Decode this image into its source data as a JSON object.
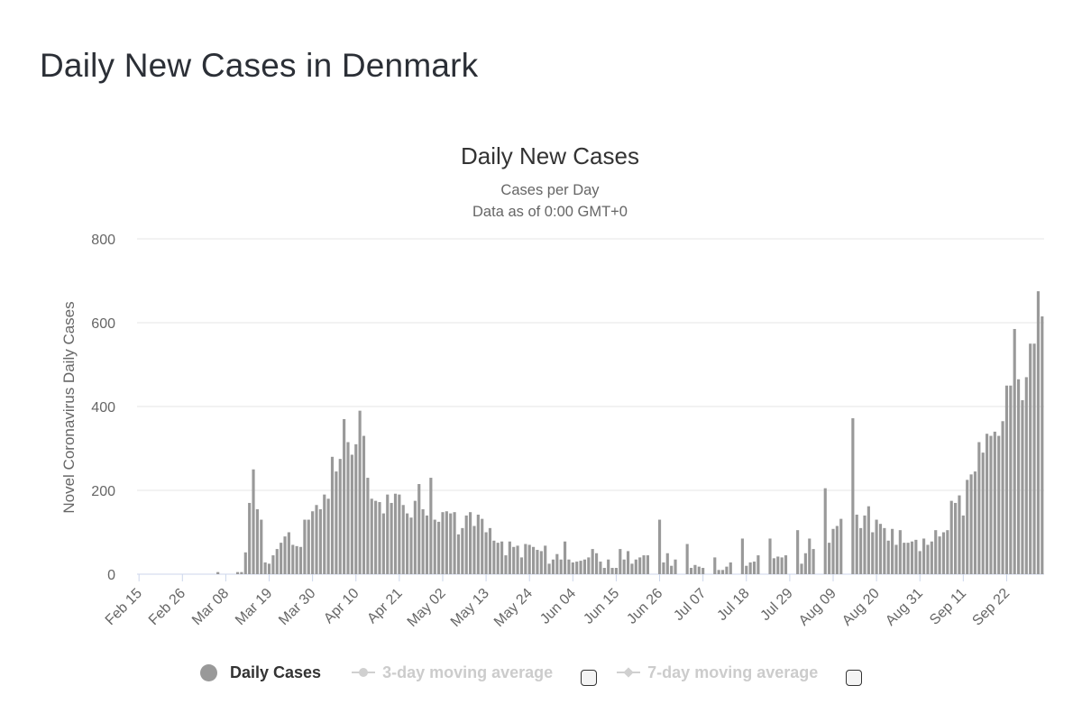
{
  "page": {
    "title": "Daily New Cases in Denmark"
  },
  "legend": {
    "daily": "Daily Cases",
    "ma3": "3-day moving average",
    "ma7": "7-day moving average"
  },
  "colors": {
    "bar": "#999999",
    "grid": "#e6e6e6",
    "axis_text": "#666666",
    "title": "#333333"
  },
  "chart_data": {
    "type": "bar",
    "title": "Daily New Cases",
    "subtitle1": "Cases per Day",
    "subtitle2": "Data as of 0:00 GMT+0",
    "xlabel": "",
    "ylabel": "Novel Coronavirus Daily Cases",
    "ylim": [
      0,
      800
    ],
    "yticks": [
      0,
      200,
      400,
      600,
      800
    ],
    "start_date": "Feb 15",
    "x_tick_labels": [
      "Feb 15",
      "Feb 26",
      "Mar 08",
      "Mar 19",
      "Mar 30",
      "Apr 10",
      "Apr 21",
      "May 02",
      "May 13",
      "May 24",
      "Jun 04",
      "Jun 15",
      "Jun 26",
      "Jul 07",
      "Jul 18",
      "Jul 29",
      "Aug 09",
      "Aug 20",
      "Aug 31",
      "Sep 11",
      "Sep 22"
    ],
    "x_tick_interval_days": 11,
    "series": [
      {
        "name": "Daily Cases",
        "values": [
          0,
          0,
          0,
          0,
          0,
          0,
          0,
          0,
          0,
          0,
          0,
          0,
          0,
          0,
          0,
          0,
          0,
          0,
          0,
          0,
          5,
          0,
          0,
          0,
          0,
          5,
          5,
          52,
          170,
          250,
          155,
          130,
          28,
          25,
          45,
          60,
          75,
          90,
          100,
          70,
          67,
          65,
          130,
          130,
          150,
          165,
          155,
          190,
          180,
          280,
          245,
          275,
          370,
          315,
          285,
          310,
          390,
          330,
          230,
          180,
          175,
          172,
          145,
          190,
          170,
          192,
          190,
          165,
          145,
          135,
          175,
          215,
          155,
          140,
          230,
          130,
          125,
          148,
          150,
          145,
          148,
          95,
          110,
          140,
          148,
          115,
          142,
          132,
          100,
          110,
          80,
          75,
          78,
          45,
          78,
          65,
          68,
          40,
          72,
          70,
          65,
          58,
          55,
          68,
          25,
          35,
          48,
          35,
          78,
          35,
          28,
          30,
          32,
          35,
          40,
          60,
          50,
          30,
          15,
          35,
          15,
          15,
          60,
          35,
          55,
          25,
          35,
          40,
          45,
          45,
          0,
          0,
          130,
          28,
          50,
          20,
          35,
          0,
          0,
          72,
          15,
          22,
          18,
          15,
          0,
          0,
          40,
          10,
          10,
          18,
          28,
          0,
          0,
          85,
          20,
          28,
          30,
          45,
          0,
          0,
          85,
          38,
          42,
          40,
          45,
          0,
          0,
          105,
          25,
          50,
          85,
          60,
          0,
          0,
          205,
          75,
          108,
          115,
          132,
          0,
          0,
          372,
          142,
          110,
          140,
          162,
          100,
          130,
          120,
          110,
          80,
          108,
          70,
          105,
          75,
          75,
          78,
          82,
          55,
          85,
          70,
          78,
          105,
          90,
          100,
          105,
          175,
          170,
          188,
          140,
          225,
          238,
          245,
          315,
          290,
          335,
          330,
          340,
          330,
          365,
          450,
          450,
          585,
          465,
          415,
          470,
          550,
          550,
          675,
          615
        ]
      }
    ]
  }
}
